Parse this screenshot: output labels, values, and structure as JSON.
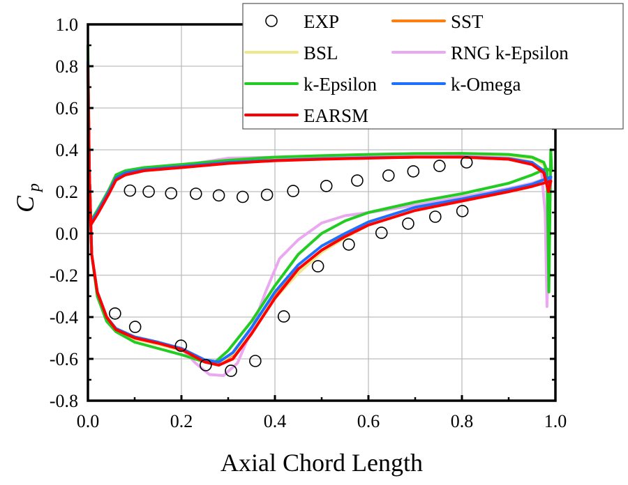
{
  "chart_data": {
    "type": "line",
    "title": "",
    "xlabel": "Axial Chord Length",
    "ylabel": "C",
    "ylabel_sub": "p",
    "xlim": [
      0.0,
      1.0
    ],
    "ylim": [
      -0.8,
      1.0
    ],
    "xticks": [
      "0.0",
      "0.2",
      "0.4",
      "0.6",
      "0.8",
      "1.0"
    ],
    "yticks": [
      "1.0",
      "0.8",
      "0.6",
      "0.4",
      "0.2",
      "0.0",
      "-0.2",
      "-0.4",
      "-0.6",
      "-0.8"
    ],
    "grid": true,
    "legend_position": "top-right",
    "legend": [
      "EXP",
      "SST",
      "BSL",
      "RNG k-Epsilon",
      "k-Epsilon",
      "k-Omega",
      "EARSM"
    ],
    "exp": {
      "name": "EXP",
      "marker": "open-circle",
      "upper": [
        [
          0.09,
          0.205
        ],
        [
          0.13,
          0.2
        ],
        [
          0.178,
          0.192
        ],
        [
          0.231,
          0.19
        ],
        [
          0.28,
          0.182
        ],
        [
          0.331,
          0.175
        ],
        [
          0.383,
          0.185
        ],
        [
          0.439,
          0.203
        ],
        [
          0.51,
          0.227
        ],
        [
          0.576,
          0.253
        ],
        [
          0.643,
          0.277
        ],
        [
          0.696,
          0.297
        ],
        [
          0.752,
          0.323
        ],
        [
          0.81,
          0.34
        ]
      ],
      "lower": [
        [
          0.058,
          -0.383
        ],
        [
          0.101,
          -0.447
        ],
        [
          0.199,
          -0.537
        ],
        [
          0.252,
          -0.63
        ],
        [
          0.306,
          -0.657
        ],
        [
          0.358,
          -0.61
        ],
        [
          0.419,
          -0.397
        ],
        [
          0.492,
          -0.157
        ],
        [
          0.558,
          -0.053
        ],
        [
          0.628,
          0.003
        ],
        [
          0.685,
          0.047
        ],
        [
          0.743,
          0.08
        ],
        [
          0.801,
          0.107
        ]
      ]
    },
    "series": [
      {
        "name": "SST",
        "color": "#ff7f0e",
        "suction": [
          [
            0.0,
            0.82
          ],
          [
            0.003,
            0.3
          ],
          [
            0.006,
            0.05
          ],
          [
            0.02,
            0.1
          ],
          [
            0.045,
            0.2
          ],
          [
            0.06,
            0.265
          ],
          [
            0.08,
            0.29
          ],
          [
            0.12,
            0.305
          ],
          [
            0.2,
            0.32
          ],
          [
            0.3,
            0.34
          ],
          [
            0.4,
            0.35
          ],
          [
            0.5,
            0.357
          ],
          [
            0.6,
            0.362
          ],
          [
            0.7,
            0.365
          ],
          [
            0.8,
            0.365
          ],
          [
            0.9,
            0.355
          ],
          [
            0.95,
            0.335
          ],
          [
            0.975,
            0.3
          ],
          [
            0.985,
            0.22
          ],
          [
            0.99,
            0.26
          ]
        ],
        "pressure": [
          [
            0.003,
            0.3
          ],
          [
            0.008,
            -0.1
          ],
          [
            0.02,
            -0.28
          ],
          [
            0.04,
            -0.4
          ],
          [
            0.06,
            -0.46
          ],
          [
            0.1,
            -0.5
          ],
          [
            0.15,
            -0.525
          ],
          [
            0.2,
            -0.55
          ],
          [
            0.25,
            -0.61
          ],
          [
            0.28,
            -0.625
          ],
          [
            0.31,
            -0.58
          ],
          [
            0.35,
            -0.46
          ],
          [
            0.4,
            -0.3
          ],
          [
            0.45,
            -0.17
          ],
          [
            0.5,
            -0.08
          ],
          [
            0.55,
            -0.01
          ],
          [
            0.6,
            0.045
          ],
          [
            0.7,
            0.11
          ],
          [
            0.8,
            0.155
          ],
          [
            0.9,
            0.2
          ],
          [
            0.95,
            0.225
          ],
          [
            0.99,
            0.26
          ]
        ]
      },
      {
        "name": "BSL",
        "color": "#f0e68c",
        "suction": [
          [
            0.0,
            0.82
          ],
          [
            0.003,
            0.3
          ],
          [
            0.006,
            0.05
          ],
          [
            0.02,
            0.1
          ],
          [
            0.045,
            0.2
          ],
          [
            0.06,
            0.27
          ],
          [
            0.08,
            0.295
          ],
          [
            0.12,
            0.31
          ],
          [
            0.2,
            0.325
          ],
          [
            0.3,
            0.345
          ],
          [
            0.4,
            0.357
          ],
          [
            0.5,
            0.365
          ],
          [
            0.6,
            0.37
          ],
          [
            0.7,
            0.375
          ],
          [
            0.8,
            0.375
          ],
          [
            0.9,
            0.37
          ],
          [
            0.95,
            0.36
          ],
          [
            0.975,
            0.33
          ],
          [
            0.985,
            0.24
          ],
          [
            0.99,
            0.27
          ]
        ],
        "pressure": [
          [
            0.003,
            0.3
          ],
          [
            0.008,
            -0.1
          ],
          [
            0.02,
            -0.28
          ],
          [
            0.04,
            -0.4
          ],
          [
            0.06,
            -0.46
          ],
          [
            0.1,
            -0.505
          ],
          [
            0.15,
            -0.53
          ],
          [
            0.2,
            -0.56
          ],
          [
            0.25,
            -0.61
          ],
          [
            0.28,
            -0.62
          ],
          [
            0.31,
            -0.575
          ],
          [
            0.35,
            -0.46
          ],
          [
            0.4,
            -0.31
          ],
          [
            0.45,
            -0.19
          ],
          [
            0.5,
            -0.09
          ],
          [
            0.55,
            -0.02
          ],
          [
            0.6,
            0.04
          ],
          [
            0.7,
            0.12
          ],
          [
            0.8,
            0.17
          ],
          [
            0.9,
            0.215
          ],
          [
            0.95,
            0.24
          ],
          [
            0.99,
            0.27
          ]
        ]
      },
      {
        "name": "RNG k-Epsilon",
        "color": "#e9a8f0",
        "suction": [
          [
            0.0,
            0.82
          ],
          [
            0.003,
            0.3
          ],
          [
            0.006,
            0.05
          ],
          [
            0.02,
            0.1
          ],
          [
            0.045,
            0.2
          ],
          [
            0.06,
            0.27
          ],
          [
            0.08,
            0.29
          ],
          [
            0.12,
            0.305
          ],
          [
            0.2,
            0.325
          ],
          [
            0.3,
            0.36
          ],
          [
            0.4,
            0.365
          ],
          [
            0.5,
            0.368
          ],
          [
            0.6,
            0.372
          ],
          [
            0.7,
            0.372
          ],
          [
            0.8,
            0.37
          ],
          [
            0.9,
            0.36
          ],
          [
            0.95,
            0.34
          ],
          [
            0.97,
            0.3
          ],
          [
            0.978,
            0.1
          ],
          [
            0.982,
            -0.35
          ],
          [
            0.986,
            0.0
          ],
          [
            0.99,
            0.27
          ]
        ],
        "pressure": [
          [
            0.003,
            0.3
          ],
          [
            0.008,
            -0.1
          ],
          [
            0.02,
            -0.28
          ],
          [
            0.04,
            -0.4
          ],
          [
            0.06,
            -0.46
          ],
          [
            0.1,
            -0.5
          ],
          [
            0.15,
            -0.525
          ],
          [
            0.2,
            -0.55
          ],
          [
            0.23,
            -0.62
          ],
          [
            0.26,
            -0.675
          ],
          [
            0.29,
            -0.68
          ],
          [
            0.32,
            -0.62
          ],
          [
            0.35,
            -0.46
          ],
          [
            0.38,
            -0.28
          ],
          [
            0.41,
            -0.12
          ],
          [
            0.45,
            -0.03
          ],
          [
            0.5,
            0.05
          ],
          [
            0.55,
            0.085
          ],
          [
            0.6,
            0.1
          ],
          [
            0.7,
            0.135
          ],
          [
            0.8,
            0.175
          ],
          [
            0.9,
            0.215
          ],
          [
            0.95,
            0.24
          ],
          [
            0.99,
            0.27
          ]
        ]
      },
      {
        "name": "k-Epsilon",
        "color": "#22cc22",
        "suction": [
          [
            0.0,
            0.9
          ],
          [
            0.003,
            0.3
          ],
          [
            0.006,
            0.06
          ],
          [
            0.02,
            0.11
          ],
          [
            0.045,
            0.21
          ],
          [
            0.06,
            0.28
          ],
          [
            0.08,
            0.3
          ],
          [
            0.12,
            0.315
          ],
          [
            0.2,
            0.33
          ],
          [
            0.3,
            0.35
          ],
          [
            0.4,
            0.365
          ],
          [
            0.5,
            0.372
          ],
          [
            0.6,
            0.378
          ],
          [
            0.7,
            0.382
          ],
          [
            0.8,
            0.383
          ],
          [
            0.9,
            0.378
          ],
          [
            0.95,
            0.365
          ],
          [
            0.975,
            0.34
          ],
          [
            0.982,
            0.3
          ],
          [
            0.986,
            -0.28
          ],
          [
            0.99,
            0.4
          ],
          [
            0.992,
            0.3
          ]
        ],
        "pressure": [
          [
            0.003,
            0.3
          ],
          [
            0.008,
            -0.1
          ],
          [
            0.02,
            -0.3
          ],
          [
            0.04,
            -0.42
          ],
          [
            0.06,
            -0.47
          ],
          [
            0.1,
            -0.52
          ],
          [
            0.15,
            -0.55
          ],
          [
            0.2,
            -0.58
          ],
          [
            0.25,
            -0.615
          ],
          [
            0.27,
            -0.62
          ],
          [
            0.3,
            -0.56
          ],
          [
            0.35,
            -0.42
          ],
          [
            0.4,
            -0.25
          ],
          [
            0.45,
            -0.1
          ],
          [
            0.5,
            0.0
          ],
          [
            0.55,
            0.06
          ],
          [
            0.6,
            0.1
          ],
          [
            0.7,
            0.15
          ],
          [
            0.8,
            0.19
          ],
          [
            0.9,
            0.24
          ],
          [
            0.95,
            0.28
          ],
          [
            0.98,
            0.31
          ],
          [
            0.99,
            0.3
          ]
        ]
      },
      {
        "name": "k-Omega",
        "color": "#1f6fff",
        "suction": [
          [
            0.0,
            0.82
          ],
          [
            0.003,
            0.3
          ],
          [
            0.006,
            0.05
          ],
          [
            0.02,
            0.1
          ],
          [
            0.045,
            0.2
          ],
          [
            0.06,
            0.265
          ],
          [
            0.08,
            0.29
          ],
          [
            0.12,
            0.305
          ],
          [
            0.2,
            0.32
          ],
          [
            0.3,
            0.34
          ],
          [
            0.4,
            0.35
          ],
          [
            0.5,
            0.357
          ],
          [
            0.6,
            0.362
          ],
          [
            0.7,
            0.365
          ],
          [
            0.8,
            0.366
          ],
          [
            0.9,
            0.358
          ],
          [
            0.95,
            0.34
          ],
          [
            0.975,
            0.3
          ],
          [
            0.985,
            0.23
          ],
          [
            0.99,
            0.27
          ]
        ],
        "pressure": [
          [
            0.003,
            0.3
          ],
          [
            0.008,
            -0.1
          ],
          [
            0.02,
            -0.28
          ],
          [
            0.04,
            -0.4
          ],
          [
            0.06,
            -0.455
          ],
          [
            0.1,
            -0.495
          ],
          [
            0.15,
            -0.52
          ],
          [
            0.2,
            -0.55
          ],
          [
            0.25,
            -0.605
          ],
          [
            0.28,
            -0.615
          ],
          [
            0.31,
            -0.57
          ],
          [
            0.35,
            -0.45
          ],
          [
            0.4,
            -0.28
          ],
          [
            0.45,
            -0.15
          ],
          [
            0.5,
            -0.06
          ],
          [
            0.55,
            0.0
          ],
          [
            0.6,
            0.055
          ],
          [
            0.7,
            0.125
          ],
          [
            0.8,
            0.165
          ],
          [
            0.9,
            0.21
          ],
          [
            0.95,
            0.235
          ],
          [
            0.99,
            0.27
          ]
        ]
      },
      {
        "name": "EARSM",
        "color": "#ff0000",
        "suction": [
          [
            0.0,
            0.8
          ],
          [
            0.003,
            0.3
          ],
          [
            0.006,
            0.04
          ],
          [
            0.02,
            0.09
          ],
          [
            0.045,
            0.19
          ],
          [
            0.06,
            0.255
          ],
          [
            0.08,
            0.28
          ],
          [
            0.12,
            0.3
          ],
          [
            0.2,
            0.315
          ],
          [
            0.3,
            0.335
          ],
          [
            0.4,
            0.348
          ],
          [
            0.5,
            0.355
          ],
          [
            0.6,
            0.36
          ],
          [
            0.7,
            0.365
          ],
          [
            0.8,
            0.365
          ],
          [
            0.9,
            0.355
          ],
          [
            0.95,
            0.33
          ],
          [
            0.975,
            0.29
          ],
          [
            0.985,
            0.2
          ],
          [
            0.99,
            0.25
          ]
        ],
        "pressure": [
          [
            0.003,
            0.3
          ],
          [
            0.008,
            -0.1
          ],
          [
            0.02,
            -0.28
          ],
          [
            0.04,
            -0.4
          ],
          [
            0.06,
            -0.46
          ],
          [
            0.1,
            -0.5
          ],
          [
            0.15,
            -0.525
          ],
          [
            0.2,
            -0.555
          ],
          [
            0.25,
            -0.615
          ],
          [
            0.28,
            -0.63
          ],
          [
            0.31,
            -0.6
          ],
          [
            0.35,
            -0.48
          ],
          [
            0.4,
            -0.31
          ],
          [
            0.45,
            -0.17
          ],
          [
            0.5,
            -0.08
          ],
          [
            0.55,
            -0.015
          ],
          [
            0.6,
            0.04
          ],
          [
            0.7,
            0.11
          ],
          [
            0.8,
            0.155
          ],
          [
            0.9,
            0.2
          ],
          [
            0.95,
            0.225
          ],
          [
            0.99,
            0.25
          ]
        ]
      }
    ]
  }
}
